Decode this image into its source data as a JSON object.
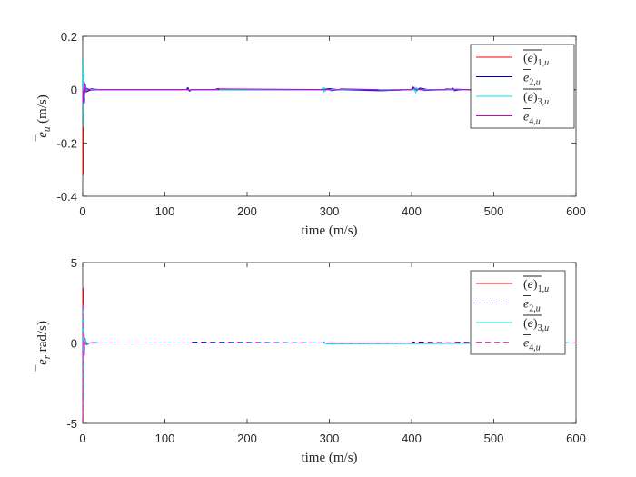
{
  "chart_data": [
    {
      "type": "line",
      "xlabel": "time (m/s)",
      "ylabel": "ē_u (m/s)",
      "xlim": [
        0,
        600
      ],
      "ylim": [
        -0.4,
        0.2
      ],
      "xticks": [
        0,
        100,
        200,
        300,
        400,
        500,
        600
      ],
      "yticks": [
        -0.4,
        -0.2,
        0,
        0.2
      ],
      "ytick_labels": [
        "-0.4",
        "-0.2",
        "0",
        "0.2"
      ],
      "grid": false,
      "legend_position": "top-right",
      "series": [
        {
          "name": "(e)̄ 1,u",
          "color": "#ff0000",
          "dash": "solid",
          "x": [
            0,
            0.5,
            1,
            1.5,
            2,
            3,
            5,
            8,
            12,
            20,
            600
          ],
          "y": [
            0,
            -0.32,
            0.05,
            -0.08,
            0.02,
            -0.01,
            0.003,
            -0.004,
            0.001,
            0,
            0
          ]
        },
        {
          "name": "ē 2,u",
          "color": "#0000cc",
          "dash": "solid",
          "x": [
            0,
            1,
            2,
            3,
            5,
            10,
            20,
            126,
            128,
            130,
            132,
            160,
            165,
            167,
            290,
            300,
            310,
            360,
            400,
            402,
            405,
            410,
            420,
            448,
            450,
            452,
            460,
            600
          ],
          "y": [
            0,
            0.06,
            -0.05,
            0.02,
            -0.008,
            0.003,
            0,
            0,
            0.008,
            -0.006,
            0,
            0,
            0.004,
            0,
            0,
            0.004,
            0,
            -0.004,
            0,
            0.01,
            -0.006,
            0.006,
            0,
            0,
            0.006,
            -0.004,
            0,
            0
          ]
        },
        {
          "name": "(e)̄ 3,u",
          "color": "#00e5e5",
          "dash": "solid",
          "x": [
            0,
            0.5,
            1,
            1.5,
            2,
            3,
            4,
            6,
            10,
            20,
            291,
            292,
            293,
            294,
            295,
            296,
            403,
            404,
            405,
            406,
            407,
            600
          ],
          "y": [
            0,
            0.11,
            -0.14,
            0.06,
            -0.03,
            0.015,
            -0.008,
            0.004,
            0.001,
            0,
            0,
            0.008,
            -0.01,
            0.008,
            -0.006,
            0,
            0,
            0.009,
            -0.012,
            0.007,
            0,
            0
          ]
        },
        {
          "name": "ē 4,u",
          "color": "#cc00cc",
          "dash": "solid",
          "x": [
            0,
            1,
            2,
            3,
            5,
            10,
            20,
            128,
            130,
            132,
            166,
            168,
            300,
            302,
            312,
            314,
            358,
            362,
            398,
            402,
            412,
            416,
            440,
            442,
            470,
            472,
            600
          ],
          "y": [
            0,
            -0.05,
            0.03,
            -0.012,
            0.005,
            -0.002,
            0,
            0,
            -0.005,
            0,
            0,
            0.003,
            0,
            -0.004,
            0,
            0.003,
            0,
            -0.004,
            0,
            0.004,
            0,
            -0.003,
            0,
            0.003,
            0,
            -0.002,
            0
          ]
        }
      ]
    },
    {
      "type": "line",
      "xlabel": "time (m/s)",
      "ylabel": "ē_r rad/s)",
      "xlim": [
        0,
        600
      ],
      "ylim": [
        -5,
        5
      ],
      "xticks": [
        0,
        100,
        200,
        300,
        400,
        500,
        600
      ],
      "yticks": [
        -5,
        0,
        5
      ],
      "ytick_labels": [
        "-5",
        "0",
        "5"
      ],
      "grid": false,
      "legend_position": "top-right",
      "series": [
        {
          "name": "(e)̄ 1,u",
          "color": "#ff0000",
          "dash": "solid",
          "x": [
            0,
            0.5,
            1,
            1.5,
            2,
            3,
            5,
            10,
            20,
            600
          ],
          "y": [
            0,
            3.4,
            -2.0,
            1.0,
            -0.4,
            0.15,
            -0.05,
            0.02,
            0,
            0
          ]
        },
        {
          "name": "ē 2,u",
          "color": "#00008b",
          "dash": "dashed",
          "x": [
            0,
            1,
            2,
            3,
            5,
            10,
            20,
            130,
            132,
            300,
            302,
            400,
            402,
            450,
            452,
            600
          ],
          "y": [
            0,
            1.2,
            -0.8,
            0.3,
            -0.1,
            0.03,
            0,
            0,
            0.05,
            0,
            -0.05,
            0,
            0.06,
            0,
            0.04,
            0
          ]
        },
        {
          "name": "(e)̄ 3,u",
          "color": "#00e5e5",
          "dash": "solid",
          "x": [
            0,
            0.5,
            1,
            1.5,
            2,
            3,
            5,
            10,
            20,
            292,
            294,
            296,
            600
          ],
          "y": [
            0,
            2.2,
            -3.5,
            1.5,
            -0.6,
            0.2,
            -0.06,
            0.02,
            0,
            0,
            0.08,
            -0.06,
            0
          ]
        },
        {
          "name": "ē 4,u",
          "color": "#ff33cc",
          "dash": "dashed",
          "x": [
            0,
            0.5,
            1,
            1.5,
            2,
            3,
            5,
            10,
            20,
            600
          ],
          "y": [
            0,
            -4.9,
            2.5,
            -1.0,
            0.4,
            -0.12,
            0.04,
            -0.01,
            0,
            0
          ]
        }
      ]
    }
  ]
}
